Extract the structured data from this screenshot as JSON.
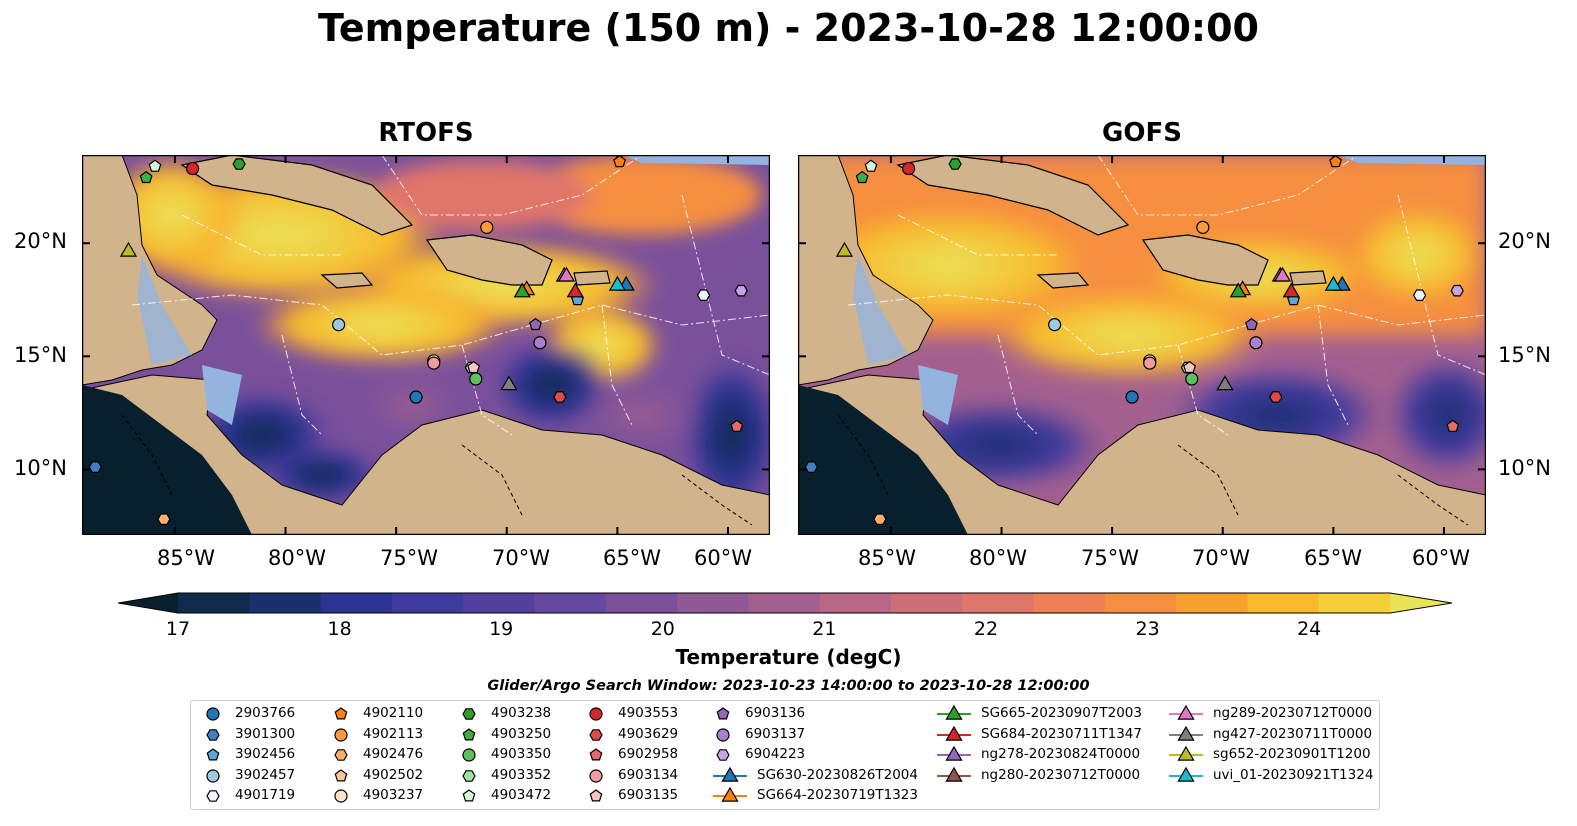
{
  "title": "Temperature (150 m) - 2023-10-28 12:00:00",
  "panels": [
    {
      "title": "RTOFS"
    },
    {
      "title": "GOFS"
    }
  ],
  "lat_labels": [
    "20°N",
    "15°N",
    "10°N"
  ],
  "lon_labels": [
    "85°W",
    "80°W",
    "75°W",
    "70°W",
    "65°W",
    "60°W"
  ],
  "colorbar": {
    "label": "Temperature (degC)",
    "ticks": [
      "17",
      "18",
      "19",
      "20",
      "21",
      "22",
      "23",
      "24"
    ],
    "min": 17,
    "max": 24.5,
    "step": 0.5,
    "colors": [
      "#08202e",
      "#0f2a4a",
      "#1b2f6e",
      "#2b3393",
      "#3e3a9e",
      "#52409f",
      "#66489e",
      "#7a509b",
      "#8f5996",
      "#a3608f",
      "#b86786",
      "#cc6f79",
      "#e0766a",
      "#ef8055",
      "#f68f3f",
      "#f9a12e",
      "#f8b92c",
      "#f4cf39",
      "#eae45a"
    ]
  },
  "legend_title": "Glider/Argo Search Window: 2023-10-23 14:00:00 to 2023-10-28 12:00:00",
  "legend": [
    {
      "label": "2903766",
      "marker": "circle",
      "color": "#1f77b4"
    },
    {
      "label": "3901300",
      "marker": "hexagon",
      "color": "#3f7fc0"
    },
    {
      "label": "3902456",
      "marker": "pentagon",
      "color": "#5aa7d9"
    },
    {
      "label": "3902457",
      "marker": "circle",
      "color": "#9ecae1"
    },
    {
      "label": "4901719",
      "marker": "hexagon",
      "color": "#eef4fb"
    },
    {
      "label": "4902110",
      "marker": "pentagon",
      "color": "#ff7f0e"
    },
    {
      "label": "4902113",
      "marker": "circle",
      "color": "#ff9a3c"
    },
    {
      "label": "4902476",
      "marker": "hexagon",
      "color": "#ffae6b"
    },
    {
      "label": "4902502",
      "marker": "pentagon",
      "color": "#ffc891"
    },
    {
      "label": "4903237",
      "marker": "circle",
      "color": "#ffe3c8"
    },
    {
      "label": "4903238",
      "marker": "hexagon",
      "color": "#2ca02c"
    },
    {
      "label": "4903250",
      "marker": "pentagon",
      "color": "#3fae3f"
    },
    {
      "label": "4903350",
      "marker": "circle",
      "color": "#5cc25c"
    },
    {
      "label": "4903352",
      "marker": "hexagon",
      "color": "#9de39d"
    },
    {
      "label": "4903472",
      "marker": "pentagon",
      "color": "#d4f7d4"
    },
    {
      "label": "4903553",
      "marker": "circle",
      "color": "#d62728"
    },
    {
      "label": "4903629",
      "marker": "hexagon",
      "color": "#e04a4a"
    },
    {
      "label": "6902958",
      "marker": "pentagon",
      "color": "#e66a6a"
    },
    {
      "label": "6903134",
      "marker": "circle",
      "color": "#f29c9c"
    },
    {
      "label": "6903135",
      "marker": "pentagon",
      "color": "#f8c4c4"
    },
    {
      "label": "6903136",
      "marker": "pentagon",
      "color": "#9467bd"
    },
    {
      "label": "6903137",
      "marker": "circle",
      "color": "#a97fcf"
    },
    {
      "label": "6904223",
      "marker": "hexagon",
      "color": "#c6a5e0"
    },
    {
      "label": "SG630-20230826T2004",
      "marker": "triangle",
      "color": "#1f77b4"
    },
    {
      "label": "SG664-20230719T1323",
      "marker": "triangle",
      "color": "#ff7f0e"
    },
    {
      "label": "SG665-20230907T2003",
      "marker": "triangle",
      "color": "#2ca02c"
    },
    {
      "label": "SG684-20230711T1347",
      "marker": "triangle",
      "color": "#d62728"
    },
    {
      "label": "ng278-20230824T0000",
      "marker": "triangle",
      "color": "#9467bd"
    },
    {
      "label": "ng280-20230712T0000",
      "marker": "triangle",
      "color": "#8c564b"
    },
    {
      "label": "ng289-20230712T0000",
      "marker": "triangle",
      "color": "#e377c2"
    },
    {
      "label": "ng427-20230711T0000",
      "marker": "triangle",
      "color": "#7f7f7f"
    },
    {
      "label": "sg652-20230901T1200",
      "marker": "triangle",
      "color": "#bcbd22"
    },
    {
      "label": "uvi_01-20230921T1324",
      "marker": "triangle",
      "color": "#17becf"
    }
  ],
  "platforms": [
    {
      "id": "2903766",
      "lon": -74.1,
      "lat": 13.2
    },
    {
      "id": "3901300",
      "lon": -88.6,
      "lat": 10.1
    },
    {
      "id": "3902456",
      "lon": -66.8,
      "lat": 17.5
    },
    {
      "id": "3902457",
      "lon": -77.6,
      "lat": 16.4
    },
    {
      "id": "4901719",
      "lon": -61.1,
      "lat": 17.7
    },
    {
      "id": "4902110",
      "lon": -64.9,
      "lat": 23.6
    },
    {
      "id": "4902113",
      "lon": -70.9,
      "lat": 20.7
    },
    {
      "id": "4902476",
      "lon": -85.5,
      "lat": 7.8
    },
    {
      "id": "4903237",
      "lon": -73.3,
      "lat": 14.8
    },
    {
      "id": "4903238",
      "lon": -82.1,
      "lat": 23.5
    },
    {
      "id": "4903250",
      "lon": -86.3,
      "lat": 22.9
    },
    {
      "id": "4903350",
      "lon": -71.4,
      "lat": 14.0
    },
    {
      "id": "4903352",
      "lon": -71.6,
      "lat": 14.5
    },
    {
      "id": "4903472",
      "lon": -85.9,
      "lat": 23.4
    },
    {
      "id": "4903553",
      "lon": -84.2,
      "lat": 23.3
    },
    {
      "id": "4903629",
      "lon": -67.6,
      "lat": 13.2
    },
    {
      "id": "6902958",
      "lon": -59.6,
      "lat": 11.9
    },
    {
      "id": "6903134",
      "lon": -73.3,
      "lat": 14.7
    },
    {
      "id": "6903135",
      "lon": -71.5,
      "lat": 14.5
    },
    {
      "id": "6903136",
      "lon": -68.7,
      "lat": 16.4
    },
    {
      "id": "6903137",
      "lon": -68.5,
      "lat": 15.6
    },
    {
      "id": "6904223",
      "lon": -59.4,
      "lat": 17.9
    },
    {
      "id": "SG630-20230826T2004",
      "lon": -64.6,
      "lat": 18.2
    },
    {
      "id": "SG664-20230719T1323",
      "lon": -69.1,
      "lat": 18.0
    },
    {
      "id": "SG665-20230907T2003",
      "lon": -69.3,
      "lat": 17.9
    },
    {
      "id": "SG684-20230711T1347",
      "lon": -66.9,
      "lat": 17.9
    },
    {
      "id": "ng278-20230824T0000",
      "lon": -67.4,
      "lat": 18.6
    },
    {
      "id": "ng289-20230712T0000",
      "lon": -67.3,
      "lat": 18.6
    },
    {
      "id": "ng427-20230711T0000",
      "lon": -69.9,
      "lat": 13.8
    },
    {
      "id": "sg652-20230901T1200",
      "lon": -87.1,
      "lat": 19.7
    },
    {
      "id": "uvi_01-20230921T1324",
      "lon": -65.0,
      "lat": 18.2
    }
  ]
}
